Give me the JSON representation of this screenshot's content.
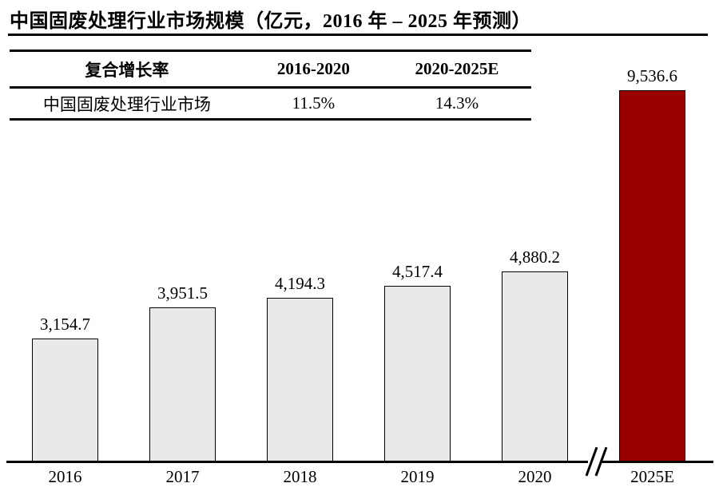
{
  "title": "中国固废处理行业市场规模（亿元，2016 年 – 2025 年预测）",
  "table": {
    "headers": [
      "复合增长率",
      "2016-2020",
      "2020-2025E"
    ],
    "row": [
      "中国固废处理行业市场",
      "11.5%",
      "14.3%"
    ]
  },
  "chart_data": {
    "type": "bar",
    "title": "中国固废处理行业市场规模（亿元，2016 年 – 2025 年预测）",
    "categories": [
      "2016",
      "2017",
      "2018",
      "2019",
      "2020",
      "2025E"
    ],
    "values": [
      3154.7,
      3951.5,
      4194.3,
      4517.4,
      4880.2,
      9536.6
    ],
    "value_labels": [
      "3,154.7",
      "3,951.5",
      "4,194.3",
      "4,517.4",
      "4,880.2",
      "9,536.6"
    ],
    "bar_colors": [
      "#E9E9E9",
      "#E9E9E9",
      "#E9E9E9",
      "#E9E9E9",
      "#E9E9E9",
      "#9A0000"
    ],
    "xlabel": "",
    "ylabel": "",
    "ylim": [
      0,
      9536.6
    ],
    "grid": false,
    "legend": false,
    "axis_break_between": [
      "2020",
      "2025E"
    ],
    "cagr_2016_2020": "11.5%",
    "cagr_2020_2025E": "14.3%"
  },
  "colors": {
    "bar_fill": "#E9E9E9",
    "bar_highlight": "#9A0000",
    "bar_border": "#000000",
    "axis": "#000000",
    "text": "#000000",
    "background": "#FFFFFF"
  }
}
